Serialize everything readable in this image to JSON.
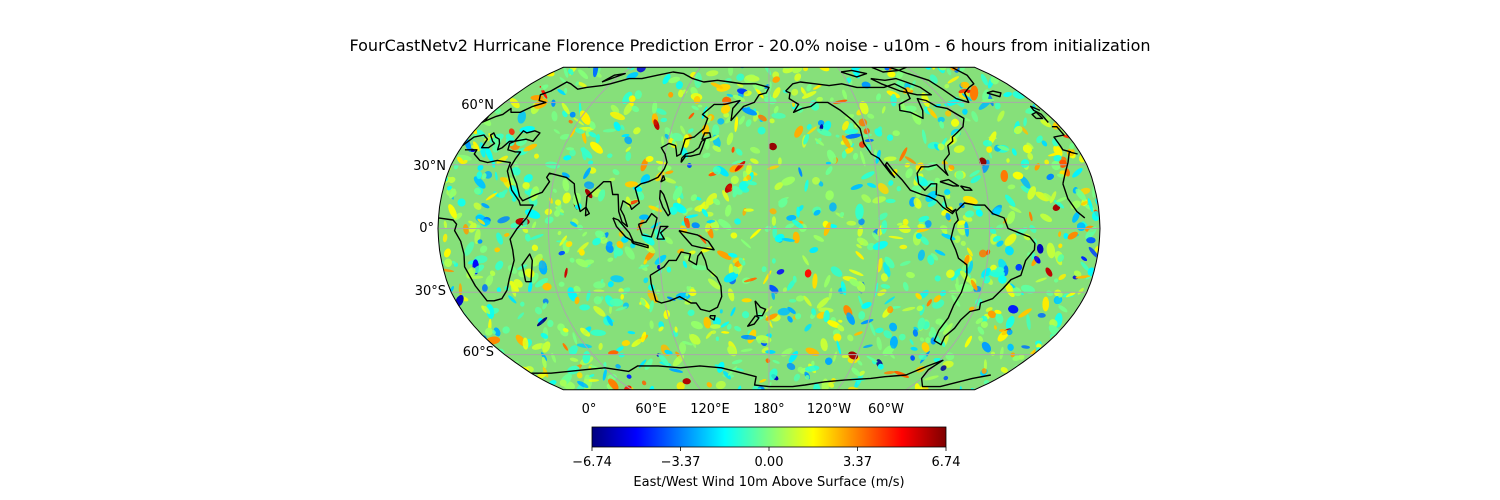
{
  "title": "FourCastNetv2 Hurricane Florence Prediction Error - 20.0% noise - u10m - 6 hours from initialization",
  "map": {
    "projection": "Robinson",
    "central_longitude": 180,
    "gridlines": true,
    "coastlines": true,
    "lat_labels": [
      "60°N",
      "30°N",
      "0°",
      "30°S",
      "60°S"
    ],
    "lon_labels": [
      "0°",
      "60°E",
      "120°E",
      "180°",
      "120°W",
      "60°W"
    ],
    "field": "u10m prediction error",
    "colormap": "jet"
  },
  "colorbar": {
    "label": "East/West Wind 10m Above Surface (m/s)",
    "ticks": [
      "−6.74",
      "−3.37",
      "0.00",
      "3.37",
      "6.74"
    ],
    "vmin": -6.74,
    "vmax": 6.74,
    "colors": [
      "#00007f",
      "#0000ff",
      "#007fff",
      "#00ffff",
      "#7fff7f",
      "#ffff00",
      "#ff7f00",
      "#ff0000",
      "#7f0000"
    ]
  }
}
